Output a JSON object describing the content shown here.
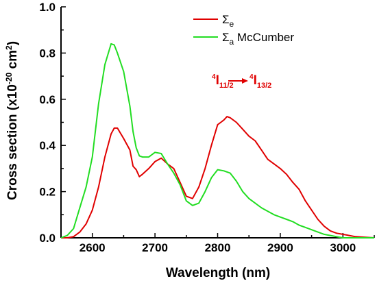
{
  "chart_data": {
    "type": "line",
    "xlabel": "Wavelength (nm)",
    "ylabel_main": "Cross section (x10",
    "ylabel_exp": "-20",
    "ylabel_tail": " cm",
    "ylabel_sq": "2",
    "ylabel_close": ")",
    "xlim": [
      2550,
      3050
    ],
    "ylim": [
      0,
      1.0
    ],
    "x_ticks": [
      2600,
      2700,
      2800,
      2900,
      3000
    ],
    "y_ticks": [
      0.0,
      0.2,
      0.4,
      0.6,
      0.8,
      1.0
    ],
    "x_tick_labels": [
      "2600",
      "2700",
      "2800",
      "2900",
      "3000"
    ],
    "y_tick_labels": [
      "0.0",
      "0.2",
      "0.4",
      "0.6",
      "0.8",
      "1.0"
    ],
    "legend_placement": "top-right",
    "grid": false,
    "series": [
      {
        "name": "Σe",
        "legend_symbol": "Σ",
        "legend_sub": "e",
        "legend_rest": "",
        "color": "#e00000",
        "points": [
          [
            2550,
            0.0
          ],
          [
            2560,
            0.0
          ],
          [
            2570,
            0.005
          ],
          [
            2580,
            0.025
          ],
          [
            2590,
            0.06
          ],
          [
            2600,
            0.12
          ],
          [
            2610,
            0.22
          ],
          [
            2620,
            0.35
          ],
          [
            2630,
            0.45
          ],
          [
            2635,
            0.475
          ],
          [
            2640,
            0.475
          ],
          [
            2650,
            0.43
          ],
          [
            2660,
            0.38
          ],
          [
            2665,
            0.31
          ],
          [
            2670,
            0.295
          ],
          [
            2675,
            0.265
          ],
          [
            2680,
            0.275
          ],
          [
            2690,
            0.3
          ],
          [
            2700,
            0.33
          ],
          [
            2710,
            0.345
          ],
          [
            2720,
            0.32
          ],
          [
            2730,
            0.3
          ],
          [
            2740,
            0.24
          ],
          [
            2750,
            0.18
          ],
          [
            2760,
            0.17
          ],
          [
            2770,
            0.22
          ],
          [
            2780,
            0.3
          ],
          [
            2790,
            0.4
          ],
          [
            2800,
            0.49
          ],
          [
            2805,
            0.5
          ],
          [
            2810,
            0.51
          ],
          [
            2815,
            0.525
          ],
          [
            2820,
            0.52
          ],
          [
            2830,
            0.5
          ],
          [
            2840,
            0.47
          ],
          [
            2850,
            0.44
          ],
          [
            2860,
            0.42
          ],
          [
            2870,
            0.38
          ],
          [
            2880,
            0.34
          ],
          [
            2890,
            0.32
          ],
          [
            2900,
            0.3
          ],
          [
            2910,
            0.275
          ],
          [
            2920,
            0.24
          ],
          [
            2930,
            0.21
          ],
          [
            2940,
            0.16
          ],
          [
            2950,
            0.12
          ],
          [
            2960,
            0.08
          ],
          [
            2970,
            0.05
          ],
          [
            2980,
            0.03
          ],
          [
            2990,
            0.02
          ],
          [
            3000,
            0.015
          ],
          [
            3010,
            0.01
          ],
          [
            3020,
            0.005
          ],
          [
            3050,
            0.0
          ]
        ]
      },
      {
        "name": "Σa McCumber",
        "legend_symbol": "Σ",
        "legend_sub": "a",
        "legend_rest": " McCumber",
        "color": "#22dd22",
        "points": [
          [
            2550,
            0.0
          ],
          [
            2560,
            0.01
          ],
          [
            2570,
            0.04
          ],
          [
            2580,
            0.13
          ],
          [
            2590,
            0.22
          ],
          [
            2600,
            0.35
          ],
          [
            2610,
            0.58
          ],
          [
            2620,
            0.75
          ],
          [
            2630,
            0.84
          ],
          [
            2635,
            0.835
          ],
          [
            2640,
            0.8
          ],
          [
            2650,
            0.72
          ],
          [
            2660,
            0.57
          ],
          [
            2665,
            0.46
          ],
          [
            2670,
            0.39
          ],
          [
            2675,
            0.355
          ],
          [
            2680,
            0.35
          ],
          [
            2690,
            0.35
          ],
          [
            2700,
            0.37
          ],
          [
            2710,
            0.365
          ],
          [
            2720,
            0.32
          ],
          [
            2730,
            0.28
          ],
          [
            2740,
            0.23
          ],
          [
            2750,
            0.16
          ],
          [
            2760,
            0.14
          ],
          [
            2770,
            0.15
          ],
          [
            2780,
            0.2
          ],
          [
            2790,
            0.26
          ],
          [
            2800,
            0.295
          ],
          [
            2810,
            0.29
          ],
          [
            2820,
            0.28
          ],
          [
            2830,
            0.245
          ],
          [
            2840,
            0.2
          ],
          [
            2850,
            0.17
          ],
          [
            2860,
            0.15
          ],
          [
            2870,
            0.13
          ],
          [
            2880,
            0.115
          ],
          [
            2890,
            0.1
          ],
          [
            2900,
            0.09
          ],
          [
            2910,
            0.08
          ],
          [
            2920,
            0.07
          ],
          [
            2930,
            0.055
          ],
          [
            2940,
            0.045
          ],
          [
            2950,
            0.035
          ],
          [
            2960,
            0.025
          ],
          [
            2970,
            0.015
          ],
          [
            2980,
            0.01
          ],
          [
            2990,
            0.005
          ],
          [
            3000,
            0.0
          ],
          [
            3050,
            0.0
          ]
        ]
      }
    ],
    "annotation": {
      "from_sup": "4",
      "from_main": "I",
      "from_sub": "11/2",
      "to_sup": "4",
      "to_main": "I",
      "to_sub": "13/2",
      "color": "#e00000"
    }
  }
}
